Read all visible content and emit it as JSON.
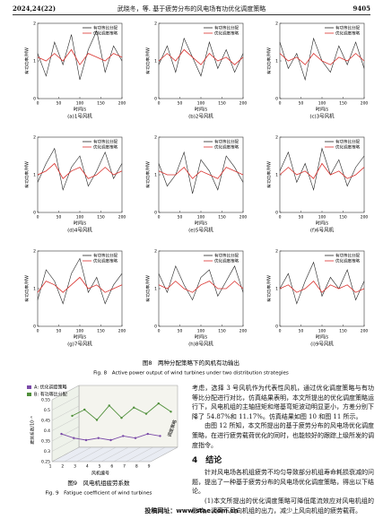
{
  "header": {
    "volume": "2024,24(22)",
    "title": "武晓冬，等. 基于疲劳分布的风电场有功优化调度策略",
    "page": "9405"
  },
  "figures": {
    "fig8": {
      "caption_cn": "图8　两种分配策略下的风机有功输出",
      "caption_en": "Fig. 8　Active power output of wind turbines under two distribution strategies"
    },
    "fig9": {
      "caption_cn": "图9　风电机组疲劳系数",
      "caption_en": "Fig. 9　Fatigue coefficient of wind turbines"
    }
  },
  "chart_data": [
    {
      "type": "line",
      "caption": "(a)1号风机",
      "x_label": "时间/s",
      "y_label": "有功功率/MW",
      "x": [
        0,
        20,
        40,
        60,
        80,
        100,
        120,
        140,
        160,
        180,
        200
      ],
      "xlim": [
        0,
        200
      ],
      "xticks": [
        0,
        50,
        100,
        150,
        200
      ],
      "ylim": [
        0,
        2
      ],
      "yticks": [
        0,
        1,
        2
      ],
      "series": [
        {
          "name": "有功等比分配",
          "color": "#222",
          "values": [
            1.2,
            0.6,
            1.5,
            0.9,
            1.7,
            0.5,
            1.3,
            1.8,
            0.7,
            1.4,
            1.0
          ]
        },
        {
          "name": "优化调度策略",
          "color": "#d9302c",
          "values": [
            1.1,
            1.0,
            1.2,
            1.0,
            1.3,
            0.9,
            1.2,
            1.1,
            1.0,
            1.2,
            1.1
          ]
        }
      ]
    },
    {
      "type": "line",
      "caption": "(b)2号风机",
      "x_label": "时间/s",
      "y_label": "有功功率/MW",
      "x": [
        0,
        20,
        40,
        60,
        80,
        100,
        120,
        140,
        160,
        180,
        200
      ],
      "xlim": [
        0,
        200
      ],
      "xticks": [
        0,
        50,
        100,
        150,
        200
      ],
      "ylim": [
        0,
        2
      ],
      "yticks": [
        0,
        1,
        2
      ],
      "series": [
        {
          "name": "有功等比分配",
          "color": "#222",
          "values": [
            0.9,
            1.4,
            0.7,
            1.6,
            1.1,
            0.6,
            1.5,
            0.8,
            1.3,
            0.7,
            1.2
          ]
        },
        {
          "name": "优化调度策略",
          "color": "#d9302c",
          "values": [
            1.0,
            1.2,
            1.0,
            1.3,
            1.1,
            0.9,
            1.2,
            1.0,
            1.1,
            0.9,
            1.1
          ]
        }
      ]
    },
    {
      "type": "line",
      "caption": "(c)3号风机",
      "x_label": "时间/s",
      "y_label": "有功功率/MW",
      "x": [
        0,
        20,
        40,
        60,
        80,
        100,
        120,
        140,
        160,
        180,
        200
      ],
      "xlim": [
        0,
        200
      ],
      "xticks": [
        0,
        50,
        100,
        150,
        200
      ],
      "ylim": [
        0,
        2
      ],
      "yticks": [
        0,
        1,
        2
      ],
      "series": [
        {
          "name": "有功等比分配",
          "color": "#222",
          "values": [
            1.5,
            0.8,
            1.2,
            0.5,
            1.6,
            1.0,
            0.7,
            1.4,
            0.9,
            1.5,
            0.8
          ]
        },
        {
          "name": "优化调度策略",
          "color": "#d9302c",
          "values": [
            1.2,
            1.0,
            1.1,
            0.9,
            1.2,
            1.0,
            0.9,
            1.1,
            1.0,
            1.2,
            1.0
          ]
        }
      ]
    },
    {
      "type": "line",
      "caption": "(d)4号风机",
      "x_label": "时间/s",
      "y_label": "有功功率/MW",
      "x": [
        0,
        20,
        40,
        60,
        80,
        100,
        120,
        140,
        160,
        180,
        200
      ],
      "xlim": [
        0,
        200
      ],
      "xticks": [
        0,
        50,
        100,
        150,
        200
      ],
      "ylim": [
        0,
        2
      ],
      "yticks": [
        0,
        1,
        2
      ],
      "series": [
        {
          "name": "有功等比分配",
          "color": "#222",
          "values": [
            0.8,
            1.3,
            1.7,
            0.6,
            1.2,
            1.5,
            0.7,
            1.1,
            1.6,
            0.9,
            1.3
          ]
        },
        {
          "name": "优化调度策略",
          "color": "#d9302c",
          "values": [
            1.0,
            1.1,
            1.3,
            0.9,
            1.1,
            1.2,
            0.9,
            1.0,
            1.2,
            1.0,
            1.1
          ]
        }
      ]
    },
    {
      "type": "line",
      "caption": "(e)5号风机",
      "x_label": "时间/s",
      "y_label": "有功功率/MW",
      "x": [
        0,
        20,
        40,
        60,
        80,
        100,
        120,
        140,
        160,
        180,
        200
      ],
      "xlim": [
        0,
        200
      ],
      "xticks": [
        0,
        50,
        100,
        150,
        200
      ],
      "ylim": [
        0,
        2
      ],
      "yticks": [
        0,
        1,
        2
      ],
      "series": [
        {
          "name": "有功等比分配",
          "color": "#222",
          "values": [
            1.3,
            0.7,
            1.0,
            1.6,
            0.5,
            1.4,
            1.1,
            0.6,
            1.5,
            1.2,
            0.8
          ]
        },
        {
          "name": "优化调度策略",
          "color": "#d9302c",
          "values": [
            1.1,
            1.0,
            1.0,
            1.2,
            0.9,
            1.1,
            1.0,
            0.9,
            1.2,
            1.1,
            1.0
          ]
        }
      ]
    },
    {
      "type": "line",
      "caption": "(f)6号风机",
      "x_label": "时间/s",
      "y_label": "有功功率/MW",
      "x": [
        0,
        20,
        40,
        60,
        80,
        100,
        120,
        140,
        160,
        180,
        200
      ],
      "xlim": [
        0,
        200
      ],
      "xticks": [
        0,
        50,
        100,
        150,
        200
      ],
      "ylim": [
        0,
        2
      ],
      "yticks": [
        0,
        1,
        2
      ],
      "series": [
        {
          "name": "有功等比分配",
          "color": "#222",
          "values": [
            1.1,
            1.6,
            0.8,
            1.3,
            0.6,
            1.7,
            1.0,
            1.4,
            0.7,
            1.2,
            1.5
          ]
        },
        {
          "name": "优化调度策略",
          "color": "#d9302c",
          "values": [
            1.0,
            1.2,
            1.0,
            1.1,
            0.9,
            1.3,
            1.0,
            1.1,
            0.9,
            1.0,
            1.2
          ]
        }
      ]
    },
    {
      "type": "line",
      "caption": "(g)7号风机",
      "x_label": "时间/s",
      "y_label": "有功功率/MW",
      "x": [
        0,
        20,
        40,
        60,
        80,
        100,
        120,
        140,
        160,
        180,
        200
      ],
      "xlim": [
        0,
        200
      ],
      "xticks": [
        0,
        50,
        100,
        150,
        200
      ],
      "ylim": [
        0,
        2
      ],
      "yticks": [
        0,
        1,
        2
      ],
      "series": [
        {
          "name": "有功等比分配",
          "color": "#222",
          "values": [
            0.7,
            1.5,
            1.2,
            0.6,
            1.4,
            1.8,
            0.9,
            1.3,
            0.6,
            1.1,
            1.4
          ]
        },
        {
          "name": "优化调度策略",
          "color": "#d9302c",
          "values": [
            0.9,
            1.2,
            1.1,
            0.9,
            1.1,
            1.3,
            1.0,
            1.1,
            0.9,
            1.0,
            1.1
          ]
        }
      ]
    },
    {
      "type": "line",
      "caption": "(h)8号风机",
      "x_label": "时间/s",
      "y_label": "有功功率/MW",
      "x": [
        0,
        20,
        40,
        60,
        80,
        100,
        120,
        140,
        160,
        180,
        200
      ],
      "xlim": [
        0,
        200
      ],
      "xticks": [
        0,
        50,
        100,
        150,
        200
      ],
      "ylim": [
        0,
        2
      ],
      "yticks": [
        0,
        1,
        2
      ],
      "series": [
        {
          "name": "有功等比分配",
          "color": "#222",
          "values": [
            1.4,
            0.9,
            1.6,
            1.1,
            0.7,
            1.3,
            1.5,
            0.8,
            1.2,
            1.6,
            0.9
          ]
        },
        {
          "name": "优化调度策略",
          "color": "#d9302c",
          "values": [
            1.1,
            1.0,
            1.2,
            1.0,
            0.9,
            1.1,
            1.2,
            1.0,
            1.0,
            1.2,
            1.0
          ]
        }
      ]
    },
    {
      "type": "line",
      "caption": "(i)9号风机",
      "x_label": "时间/s",
      "y_label": "有功功率/MW",
      "x": [
        0,
        20,
        40,
        60,
        80,
        100,
        120,
        140,
        160,
        180,
        200
      ],
      "xlim": [
        0,
        200
      ],
      "xticks": [
        0,
        50,
        100,
        150,
        200
      ],
      "ylim": [
        0,
        2
      ],
      "yticks": [
        0,
        1,
        2
      ],
      "series": [
        {
          "name": "有功等比分配",
          "color": "#222",
          "values": [
            1.0,
            1.4,
            0.6,
            1.2,
            1.7,
            0.8,
            1.3,
            1.0,
            1.5,
            0.7,
            1.2
          ]
        },
        {
          "name": "优化调度策略",
          "color": "#d9302c",
          "values": [
            1.0,
            1.1,
            0.9,
            1.0,
            1.2,
            0.9,
            1.1,
            1.0,
            1.1,
            0.9,
            1.0
          ]
        }
      ]
    },
    {
      "type": "line",
      "x_label": "风机编号",
      "z_label": "调度策略",
      "y_label": "疲劳系数/10⁻³",
      "x": [
        1,
        2,
        3,
        4,
        5,
        6,
        7,
        8,
        9
      ],
      "xlim": [
        1,
        9
      ],
      "xticks": [
        1,
        2,
        3,
        4,
        5,
        6,
        7,
        8,
        9
      ],
      "ylim": [
        0.25,
        0.55
      ],
      "yticks": [
        0.25,
        0.3,
        0.35,
        0.4,
        0.45,
        0.5,
        0.55
      ],
      "series": [
        {
          "name": "A: 优化调度策略",
          "color": "#7a4aa8",
          "values": [
            0.36,
            0.34,
            0.33,
            0.34,
            0.33,
            0.35,
            0.34,
            0.36,
            0.35
          ]
        },
        {
          "name": "B: 有功等比分配",
          "color": "#4f8f3a",
          "values": [
            0.42,
            0.45,
            0.4,
            0.47,
            0.41,
            0.46,
            0.43,
            0.48,
            0.44
          ]
        }
      ]
    }
  ],
  "body": {
    "paragraphs": [
      "考虑，选择 3 号风机作为代表性风机，通过优化调度策略与有功等比分配进行对比，仿真结果表明，本文所提出的优化调度策略运行下，风电机组的主轴扭矩和塔基弯矩波动明显更小，方差分别下降了 54.87%和 11.17%。仿真结果如图 10 和图 11 所示。",
      "由图 12 所知，本文所提出的基于疲劳分布的风电场优化调度策略，在进行疲劳载荷优化的同时，也能较好的跟踪上级所发的调度指令。"
    ],
    "section": "4　结论",
    "conclusions": [
      "针对风电场各机组疲劳不均匀导致部分机组寿命耗损衰减的问题，提出了一种基于疲劳分布的风电场优化调度策略，得出以下结论。",
      "(1)本文所提出的优化调度策略可降低尾流效应对风电机组的影响，调离下风向机组的出力，减少上风向机组的疲劳载荷。"
    ]
  },
  "footer": "投稿网址：www.stae.com.cn"
}
